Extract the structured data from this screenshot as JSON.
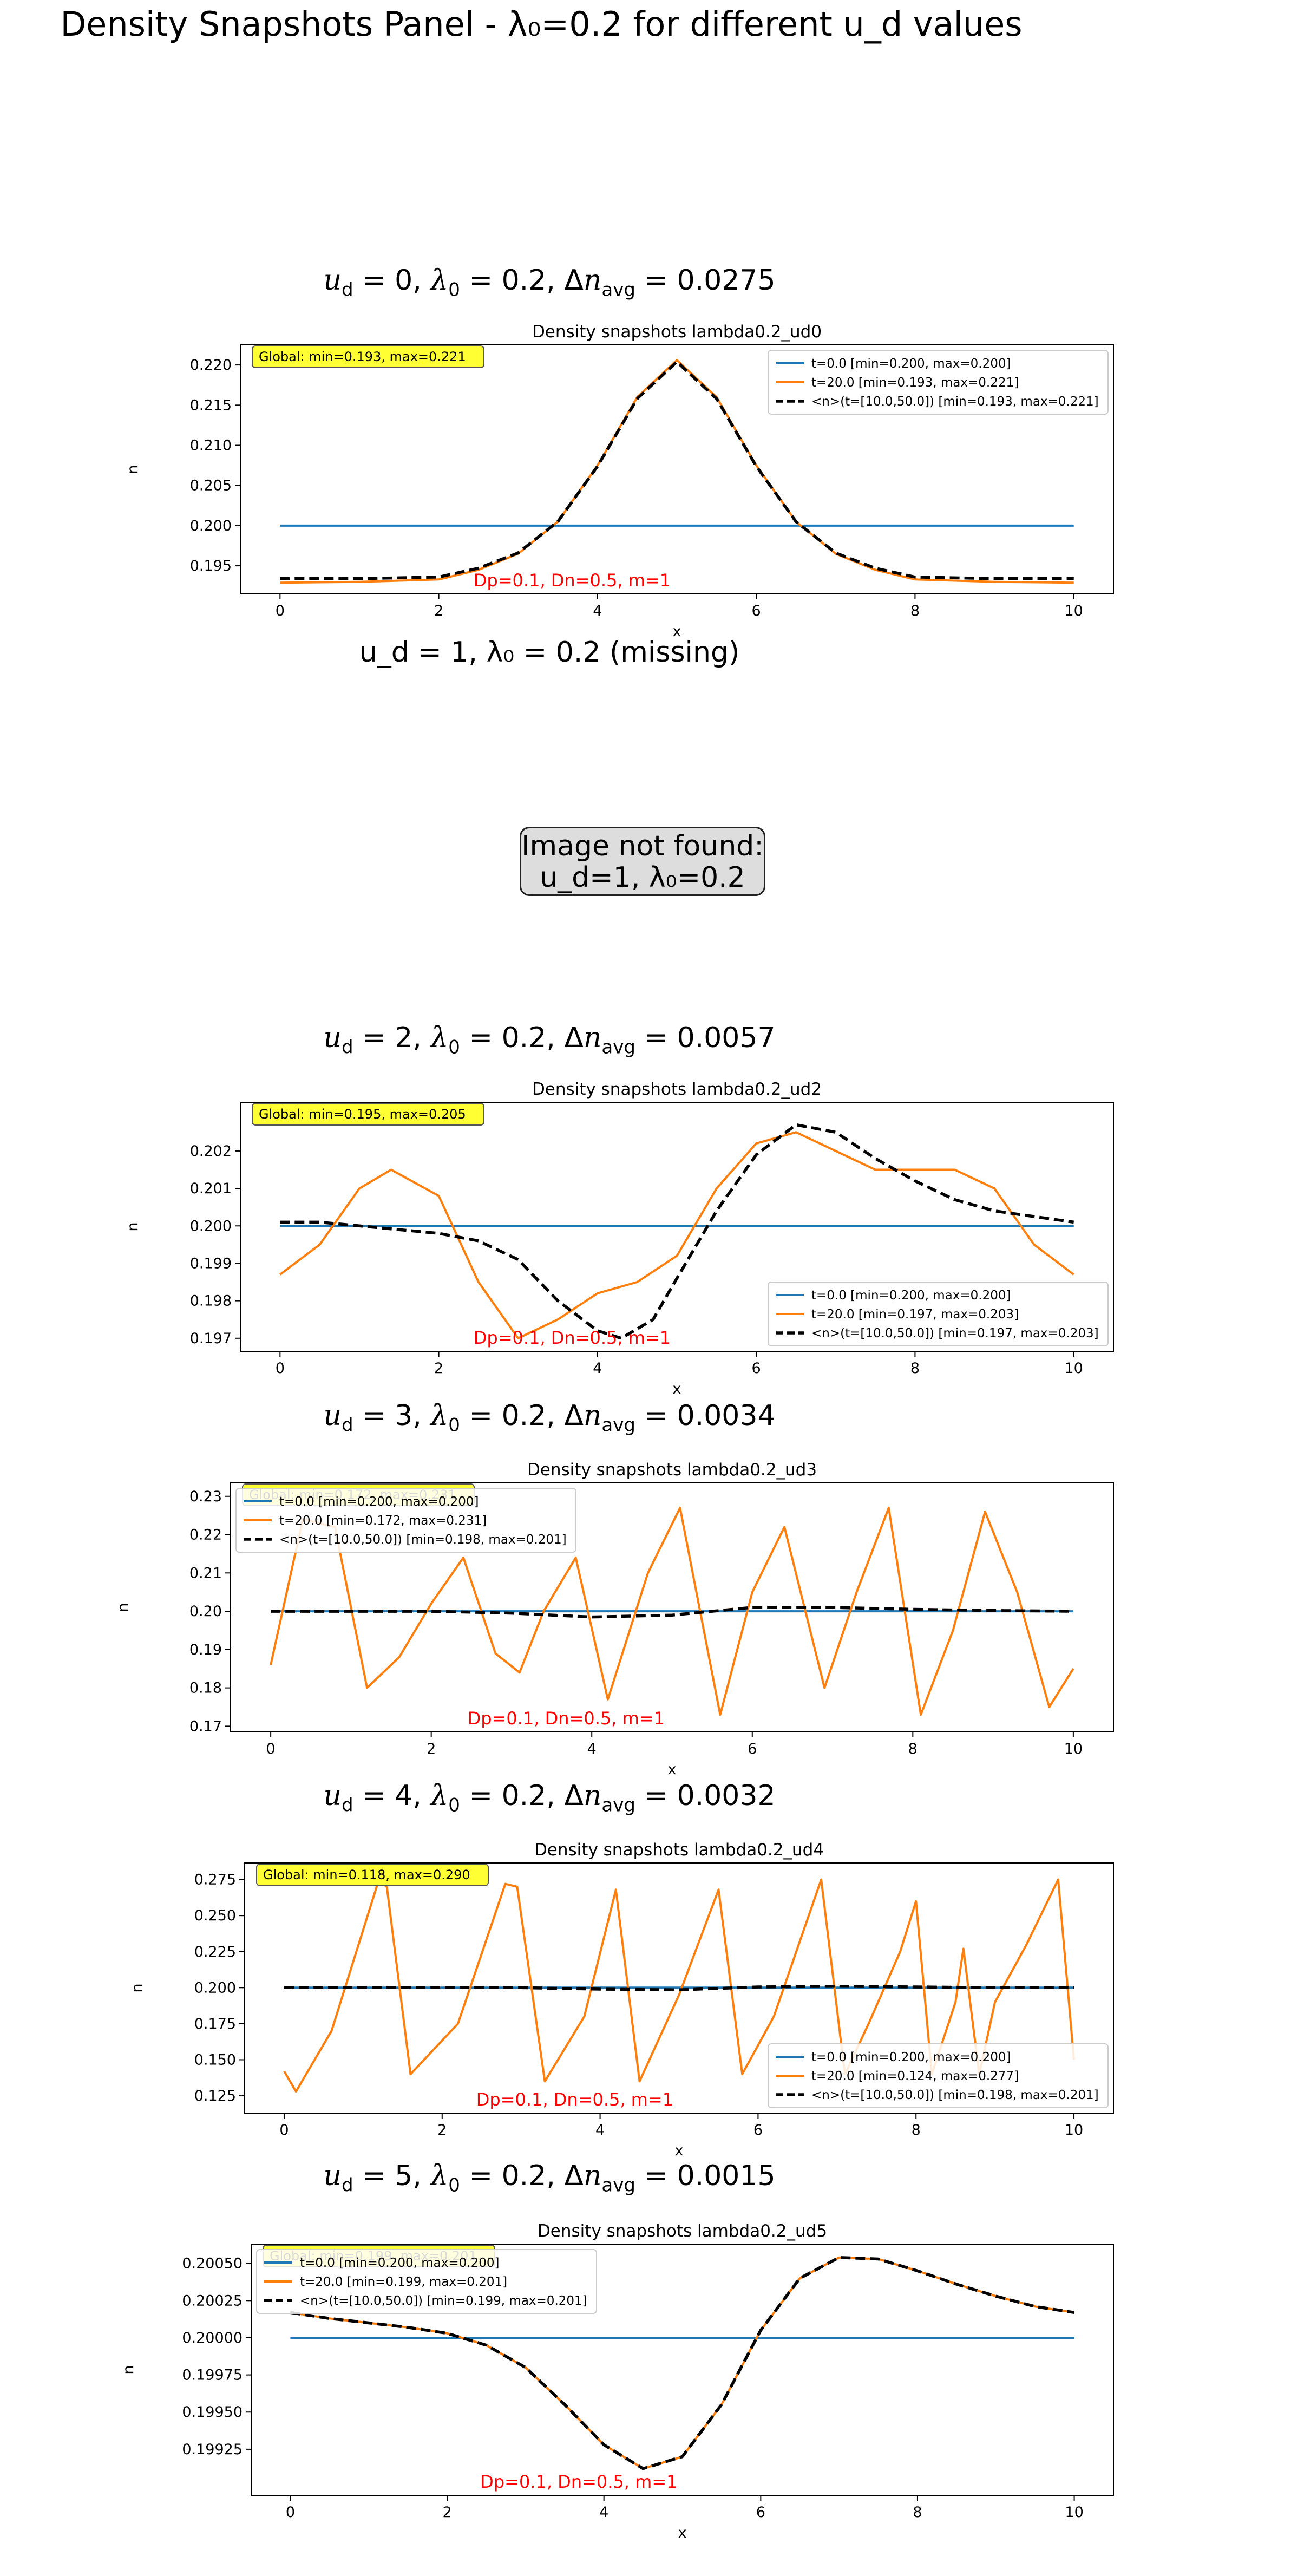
{
  "figure_title": "Density Snapshots Panel - λ₀=0.2 for different u_d values",
  "missing_panel": {
    "heading": "u_d = 1, λ₀ = 0.2 (missing)",
    "message_line1": "Image not found:",
    "message_line2": "u_d=1, λ₀=0.2"
  },
  "colors": {
    "initial": "#1f77b4",
    "final": "#ff7f0e",
    "average": "#000000",
    "annotation": "#ff0000",
    "badge": "#ffff33"
  },
  "chart_data": [
    {
      "type": "line",
      "heading": {
        "ud": "0",
        "lambda": "0.2",
        "dn": "0.0275"
      },
      "title": "Density snapshots  lambda0.2_ud0",
      "xlabel": "x",
      "ylabel": "n",
      "xlim": [
        -0.5,
        10.5
      ],
      "ylim": [
        0.1915,
        0.2225
      ],
      "xticks": [
        0,
        2,
        4,
        6,
        8,
        10
      ],
      "yticks": [
        0.195,
        0.2,
        0.205,
        0.21,
        0.215,
        0.22
      ],
      "ytick_labels": [
        "0.195",
        "0.200",
        "0.205",
        "0.210",
        "0.215",
        "0.220"
      ],
      "global_label": "Global: min=0.193, max=0.221",
      "params_label": "Dp=0.1, Dn=0.5, m=1",
      "legend_position": "upper right",
      "series": [
        {
          "name": "t=0.0 [min=0.200, max=0.200]",
          "style": "initial",
          "x": [
            0,
            10
          ],
          "y": [
            0.2,
            0.2
          ]
        },
        {
          "name": "t=20.0 [min=0.193, max=0.221]",
          "style": "final",
          "x": [
            0,
            1,
            2,
            2.5,
            3,
            3.5,
            4,
            4.5,
            5,
            5.5,
            6,
            6.5,
            7,
            7.5,
            8,
            9,
            10
          ],
          "y": [
            0.1929,
            0.193,
            0.1933,
            0.1945,
            0.1965,
            0.2005,
            0.2075,
            0.216,
            0.2206,
            0.216,
            0.2075,
            0.2005,
            0.1965,
            0.1945,
            0.1933,
            0.193,
            0.1929
          ]
        },
        {
          "name": "<n>(t=[10.0,50.0]) [min=0.193, max=0.221]",
          "style": "average",
          "x": [
            0,
            1,
            2,
            2.5,
            3,
            3.5,
            4,
            4.5,
            5,
            5.5,
            6,
            6.5,
            7,
            7.5,
            8,
            9,
            10
          ],
          "y": [
            0.1934,
            0.1934,
            0.1936,
            0.1947,
            0.1966,
            0.2005,
            0.2074,
            0.2158,
            0.2204,
            0.2158,
            0.2074,
            0.2005,
            0.1966,
            0.1947,
            0.1936,
            0.1934,
            0.1934
          ]
        }
      ]
    },
    {
      "type": "line",
      "heading": {
        "ud": "2",
        "lambda": "0.2",
        "dn": "0.0057"
      },
      "title": "Density snapshots  lambda0.2_ud2",
      "xlabel": "x",
      "ylabel": "n",
      "xlim": [
        -0.5,
        10.5
      ],
      "ylim": [
        0.19665,
        0.2033
      ],
      "xticks": [
        0,
        2,
        4,
        6,
        8,
        10
      ],
      "yticks": [
        0.197,
        0.198,
        0.199,
        0.2,
        0.201,
        0.202
      ],
      "ytick_labels": [
        "0.197",
        "0.198",
        "0.199",
        "0.200",
        "0.201",
        "0.202"
      ],
      "global_label": "Global: min=0.195, max=0.205",
      "params_label": "Dp=0.1, Dn=0.5, m=1",
      "legend_position": "lower right",
      "series": [
        {
          "name": "t=0.0 [min=0.200, max=0.200]",
          "style": "initial",
          "x": [
            0,
            10
          ],
          "y": [
            0.2,
            0.2
          ]
        },
        {
          "name": "t=20.0 [min=0.197, max=0.203]",
          "style": "final",
          "x": [
            0,
            0.5,
            1,
            1.4,
            2,
            2.5,
            3,
            3.5,
            4,
            4.5,
            5,
            5.5,
            6,
            6.5,
            7,
            7.5,
            8,
            8.5,
            9,
            9.5,
            10
          ],
          "y": [
            0.1987,
            0.1995,
            0.201,
            0.2015,
            0.2008,
            0.1985,
            0.197,
            0.1975,
            0.1982,
            0.1985,
            0.1992,
            0.201,
            0.2022,
            0.2025,
            0.202,
            0.2015,
            0.2015,
            0.2015,
            0.201,
            0.1995,
            0.1987
          ]
        },
        {
          "name": "<n>(t=[10.0,50.0]) [min=0.197, max=0.203]",
          "style": "average",
          "x": [
            0,
            0.5,
            1,
            1.5,
            2,
            2.5,
            3,
            3.5,
            4,
            4.3,
            4.7,
            5,
            5.5,
            6,
            6.5,
            7,
            7.5,
            8,
            8.5,
            9,
            10
          ],
          "y": [
            0.2001,
            0.2001,
            0.2,
            0.1999,
            0.1998,
            0.1996,
            0.1991,
            0.198,
            0.1972,
            0.197,
            0.1975,
            0.1986,
            0.2004,
            0.2019,
            0.2027,
            0.2025,
            0.2018,
            0.2012,
            0.2007,
            0.2004,
            0.2001
          ]
        }
      ]
    },
    {
      "type": "line",
      "heading": {
        "ud": "3",
        "lambda": "0.2",
        "dn": "0.0034"
      },
      "title": "Density snapshots  lambda0.2_ud3",
      "xlabel": "x",
      "ylabel": "n",
      "xlim": [
        -0.5,
        10.5
      ],
      "ylim": [
        0.1685,
        0.2335
      ],
      "xticks": [
        0,
        2,
        4,
        6,
        8,
        10
      ],
      "yticks": [
        0.17,
        0.18,
        0.19,
        0.2,
        0.21,
        0.22,
        0.23
      ],
      "ytick_labels": [
        "0.17",
        "0.18",
        "0.19",
        "0.20",
        "0.21",
        "0.22",
        "0.23"
      ],
      "global_label": "Global: min=0.172, max=0.231",
      "params_label": "Dp=0.1, Dn=0.5, m=1",
      "legend_position": "upper left",
      "series": [
        {
          "name": "t=0.0 [min=0.200, max=0.200]",
          "style": "initial",
          "x": [
            0,
            10
          ],
          "y": [
            0.2,
            0.2
          ]
        },
        {
          "name": "t=20.0 [min=0.172, max=0.231]",
          "style": "final",
          "x": [
            0,
            0.4,
            0.8,
            1.2,
            1.6,
            2.0,
            2.4,
            2.8,
            3.1,
            3.4,
            3.8,
            4.2,
            4.7,
            5.1,
            5.6,
            6.0,
            6.4,
            6.9,
            7.3,
            7.7,
            8.1,
            8.5,
            8.9,
            9.3,
            9.7,
            10
          ],
          "y": [
            0.186,
            0.224,
            0.222,
            0.18,
            0.188,
            0.202,
            0.214,
            0.189,
            0.184,
            0.2,
            0.214,
            0.177,
            0.21,
            0.227,
            0.173,
            0.205,
            0.222,
            0.18,
            0.205,
            0.227,
            0.173,
            0.195,
            0.226,
            0.205,
            0.175,
            0.185
          ]
        },
        {
          "name": "<n>(t=[10.0,50.0]) [min=0.198, max=0.201]",
          "style": "average",
          "x": [
            0,
            1,
            2,
            3,
            4,
            5,
            6,
            7,
            8,
            9,
            10
          ],
          "y": [
            0.2,
            0.2,
            0.2,
            0.1995,
            0.1985,
            0.199,
            0.201,
            0.201,
            0.2005,
            0.2002,
            0.2
          ]
        }
      ]
    },
    {
      "type": "line",
      "heading": {
        "ud": "4",
        "lambda": "0.2",
        "dn": "0.0032"
      },
      "title": "Density snapshots  lambda0.2_ud4",
      "xlabel": "x",
      "ylabel": "n",
      "xlim": [
        -0.5,
        10.5
      ],
      "ylim": [
        0.113,
        0.2865
      ],
      "xticks": [
        0,
        2,
        4,
        6,
        8,
        10
      ],
      "yticks": [
        0.125,
        0.15,
        0.175,
        0.2,
        0.225,
        0.25,
        0.275
      ],
      "ytick_labels": [
        "0.125",
        "0.150",
        "0.175",
        "0.200",
        "0.225",
        "0.250",
        "0.275"
      ],
      "global_label": "Global: min=0.118, max=0.290",
      "params_label": "Dp=0.1, Dn=0.5, m=1",
      "legend_position": "lower right",
      "series": [
        {
          "name": "t=0.0 [min=0.200, max=0.200]",
          "style": "initial",
          "x": [
            0,
            10
          ],
          "y": [
            0.2,
            0.2
          ]
        },
        {
          "name": "t=20.0 [min=0.124, max=0.277]",
          "style": "final",
          "x": [
            0,
            0.15,
            0.6,
            1.2,
            1.3,
            1.6,
            2.2,
            2.8,
            2.95,
            3.3,
            3.8,
            4.2,
            4.5,
            5.0,
            5.5,
            5.8,
            6.2,
            6.8,
            7.1,
            7.4,
            7.8,
            8.0,
            8.2,
            8.5,
            8.6,
            8.8,
            9.0,
            9.4,
            9.8,
            10
          ],
          "y": [
            0.142,
            0.128,
            0.17,
            0.275,
            0.27,
            0.14,
            0.175,
            0.272,
            0.27,
            0.135,
            0.18,
            0.268,
            0.135,
            0.195,
            0.268,
            0.14,
            0.18,
            0.275,
            0.14,
            0.175,
            0.225,
            0.26,
            0.14,
            0.19,
            0.227,
            0.14,
            0.19,
            0.23,
            0.275,
            0.15
          ]
        },
        {
          "name": "<n>(t=[10.0,50.0]) [min=0.198, max=0.201]",
          "style": "average",
          "x": [
            0,
            1,
            2,
            3,
            4,
            5,
            6,
            7,
            8,
            9,
            10
          ],
          "y": [
            0.2,
            0.2,
            0.2,
            0.2,
            0.199,
            0.1985,
            0.2005,
            0.201,
            0.2005,
            0.2,
            0.2
          ]
        }
      ]
    },
    {
      "type": "line",
      "heading": {
        "ud": "5",
        "lambda": "0.2",
        "dn": "0.0015"
      },
      "title": "Density snapshots  lambda0.2_ud5",
      "xlabel": "x",
      "ylabel": "n",
      "xlim": [
        -0.5,
        10.5
      ],
      "ylim": [
        0.19894,
        0.20063
      ],
      "xticks": [
        0,
        2,
        4,
        6,
        8,
        10
      ],
      "yticks": [
        0.19925,
        0.1995,
        0.19975,
        0.2,
        0.20025,
        0.2005
      ],
      "ytick_labels": [
        "0.19925",
        "0.19950",
        "0.19975",
        "0.20000",
        "0.20025",
        "0.20050"
      ],
      "global_label": "Global: min=0.199, max=0.201",
      "params_label": "Dp=0.1, Dn=0.5, m=1",
      "legend_position": "upper left",
      "series": [
        {
          "name": "t=0.0 [min=0.200, max=0.200]",
          "style": "initial",
          "x": [
            0,
            10
          ],
          "y": [
            0.2,
            0.2
          ]
        },
        {
          "name": "t=20.0 [min=0.199, max=0.201]",
          "style": "final",
          "x": [
            0,
            0.5,
            1,
            1.5,
            2,
            2.5,
            3,
            3.5,
            4,
            4.5,
            5,
            5.5,
            6,
            6.5,
            7,
            7.5,
            8,
            8.5,
            9,
            9.5,
            10
          ],
          "y": [
            0.20017,
            0.20013,
            0.2001,
            0.20007,
            0.20003,
            0.19995,
            0.1998,
            0.19955,
            0.19928,
            0.19912,
            0.1992,
            0.19955,
            0.20005,
            0.2004,
            0.20054,
            0.20053,
            0.20045,
            0.20036,
            0.20028,
            0.20021,
            0.20017
          ]
        },
        {
          "name": "<n>(t=[10.0,50.0]) [min=0.199, max=0.201]",
          "style": "average",
          "x": [
            0,
            0.5,
            1,
            1.5,
            2,
            2.5,
            3,
            3.5,
            4,
            4.5,
            5,
            5.5,
            6,
            6.5,
            7,
            7.5,
            8,
            8.5,
            9,
            9.5,
            10
          ],
          "y": [
            0.20017,
            0.20013,
            0.2001,
            0.20007,
            0.20003,
            0.19995,
            0.1998,
            0.19955,
            0.19928,
            0.19912,
            0.1992,
            0.19955,
            0.20005,
            0.2004,
            0.20054,
            0.20053,
            0.20045,
            0.20036,
            0.20028,
            0.20021,
            0.20017
          ]
        }
      ]
    }
  ]
}
